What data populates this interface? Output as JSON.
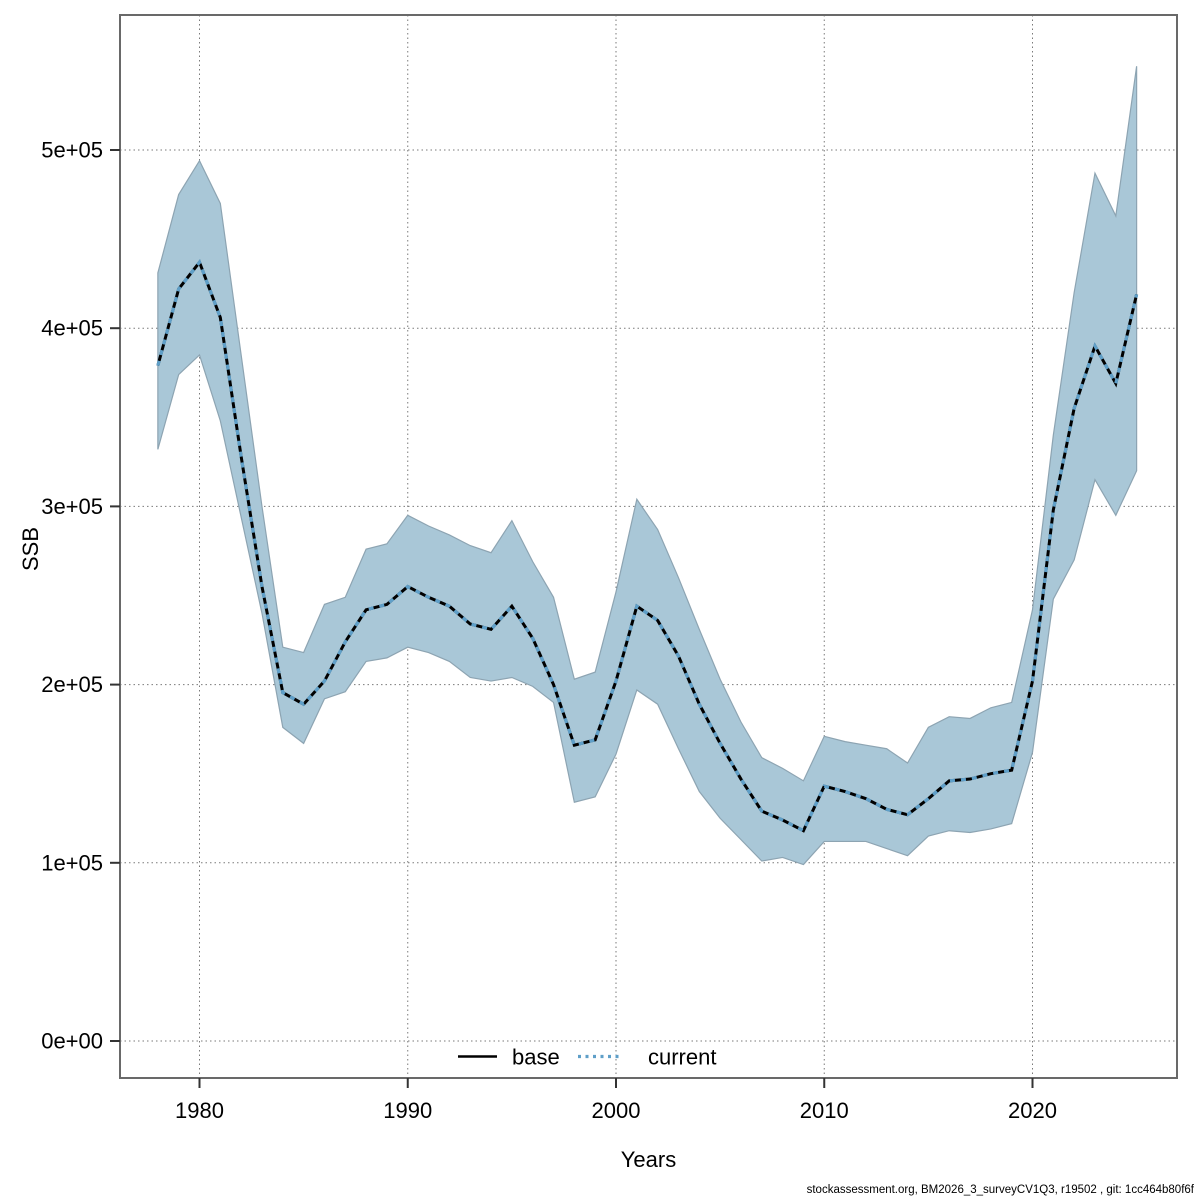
{
  "chart_data": {
    "type": "line",
    "title": "",
    "xlabel": "Years",
    "ylabel": "SSB",
    "x_ticks": [
      1980,
      1990,
      2000,
      2010,
      2020
    ],
    "x_tick_labels": [
      "1980",
      "1990",
      "2000",
      "2010",
      "2020"
    ],
    "y_ticks": [
      0,
      100000,
      200000,
      300000,
      400000,
      500000
    ],
    "y_tick_labels": [
      "0e+00",
      "1e+05",
      "2e+05",
      "3e+05",
      "4e+05",
      "5e+05"
    ],
    "xlim": [
      1977.6,
      2027
    ],
    "ylim": [
      -20000,
      575000
    ],
    "grid": "dotted",
    "legend_position": "bottom-center",
    "years": [
      1978,
      1979,
      1980,
      1981,
      1982,
      1983,
      1984,
      1985,
      1986,
      1987,
      1988,
      1989,
      1990,
      1991,
      1992,
      1993,
      1994,
      1995,
      1996,
      1997,
      1998,
      1999,
      2000,
      2001,
      2002,
      2003,
      2004,
      2005,
      2006,
      2007,
      2008,
      2009,
      2010,
      2011,
      2012,
      2013,
      2014,
      2015,
      2016,
      2017,
      2018,
      2019,
      2020,
      2021,
      2022,
      2023,
      2024,
      2025
    ],
    "series": [
      {
        "name": "base",
        "style": "solid",
        "color": "#000000",
        "values": [
          379000,
          422000,
          437000,
          406000,
          328000,
          255000,
          195500,
          189000,
          202000,
          224000,
          242000,
          245000,
          255000,
          249000,
          244000,
          234000,
          231000,
          244000,
          226000,
          200000,
          166000,
          169000,
          202000,
          244000,
          236000,
          216000,
          189000,
          167000,
          147000,
          129000,
          124000,
          118000,
          143000,
          140000,
          136000,
          130000,
          127000,
          136000,
          146000,
          147000,
          150000,
          152000,
          202000,
          298000,
          355000,
          390000,
          369000,
          419000
        ]
      },
      {
        "name": "current",
        "style": "dotted",
        "color": "#5f9fc8",
        "values": [
          379000,
          422000,
          437000,
          406000,
          328000,
          255000,
          195500,
          189000,
          202000,
          224000,
          242000,
          245000,
          255000,
          249000,
          244000,
          234000,
          231000,
          244000,
          226000,
          200000,
          166000,
          169000,
          202000,
          244000,
          236000,
          216000,
          189000,
          167000,
          147000,
          129000,
          124000,
          118000,
          143000,
          140000,
          136000,
          130000,
          127000,
          136000,
          146000,
          147000,
          150000,
          152000,
          202000,
          298000,
          355000,
          390000,
          369000,
          419000
        ]
      }
    ],
    "band": {
      "name": "current-confidence-interval",
      "fill": "#a9c7d7",
      "upper": [
        431000,
        475000,
        494000,
        470000,
        385000,
        300000,
        221000,
        218000,
        245000,
        249000,
        276000,
        279000,
        295000,
        289000,
        284000,
        278000,
        274000,
        292000,
        269000,
        249000,
        203000,
        207000,
        252000,
        304000,
        287000,
        260000,
        231000,
        203000,
        179000,
        159000,
        153000,
        146000,
        171000,
        168000,
        166000,
        164000,
        156000,
        176000,
        182000,
        181000,
        187000,
        190000,
        242000,
        340000,
        420000,
        487000,
        463000,
        547000
      ],
      "lower": [
        332000,
        374000,
        385000,
        348000,
        294000,
        240000,
        176000,
        167000,
        192000,
        196000,
        213000,
        215000,
        221000,
        218000,
        213000,
        204000,
        202000,
        204000,
        199000,
        190000,
        134000,
        137000,
        161000,
        197000,
        189000,
        164000,
        140000,
        125000,
        113000,
        101000,
        103000,
        99000,
        112000,
        112000,
        112000,
        108000,
        104000,
        115000,
        118000,
        117000,
        119000,
        122000,
        162000,
        248000,
        270000,
        315000,
        295000,
        320000
      ]
    }
  },
  "legend": {
    "items": [
      {
        "label": "base",
        "line": "solid",
        "color": "#000000"
      },
      {
        "label": "current",
        "line": "dotted",
        "color": "#5f9fc8"
      }
    ]
  },
  "footer": {
    "text": "stockassessment.org, BM2026_3_surveyCV1Q3, r19502 , git: 1cc464b80f6f"
  },
  "colors": {
    "background": "#ffffff",
    "plot_border": "#696969",
    "gridline": "#7a7a7a",
    "tick": "#333333",
    "band_fill": "#a9c7d7",
    "band_edge": "#8da4b2",
    "base_line": "#000000",
    "current_line": "#5f9fc8",
    "text": "#000000"
  }
}
